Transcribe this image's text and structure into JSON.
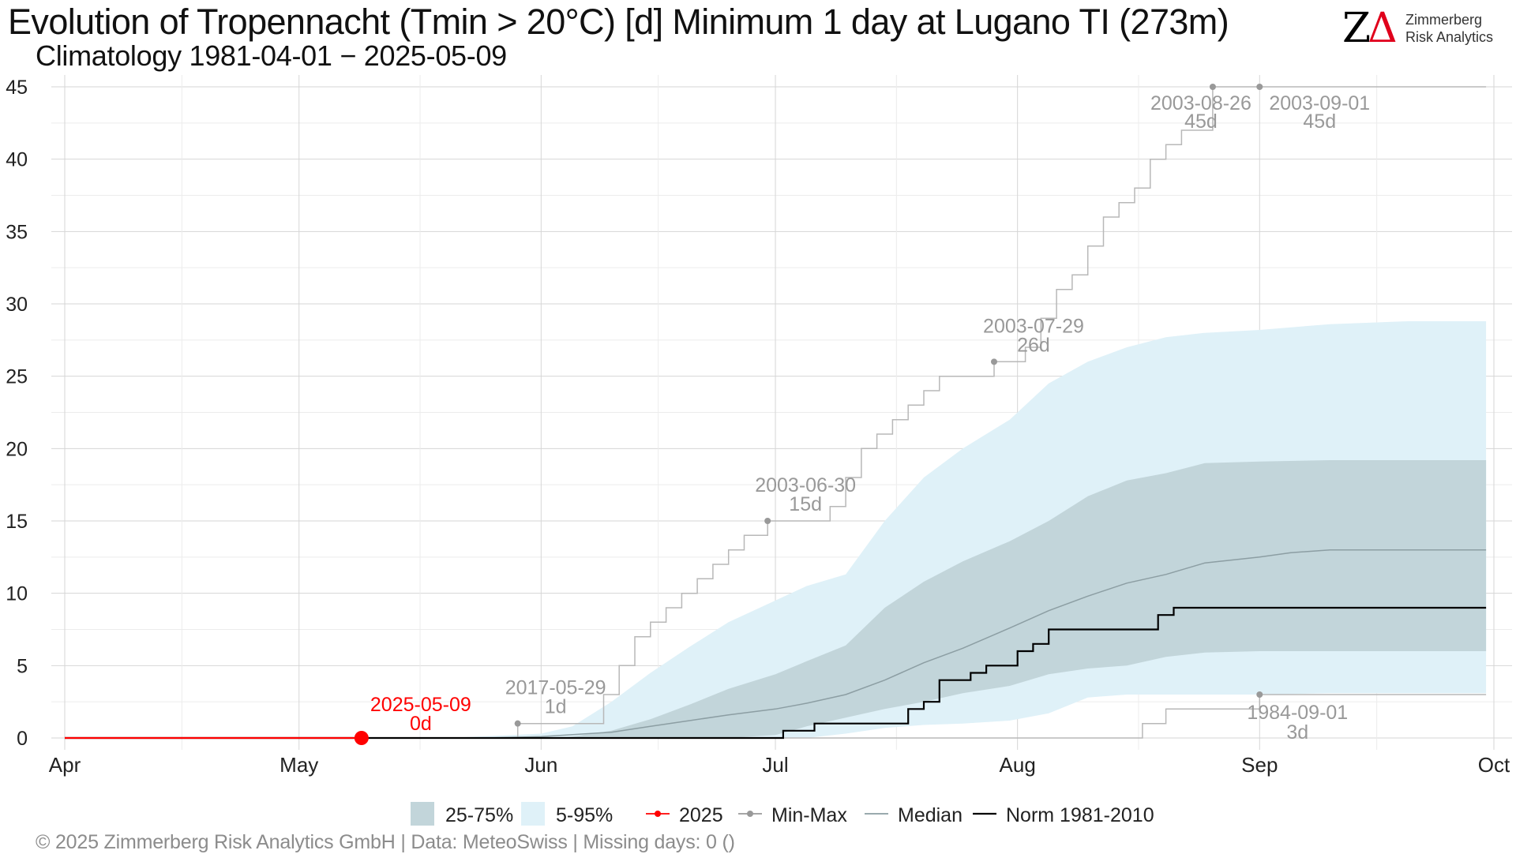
{
  "header": {
    "title": "Evolution of Tropennacht (Tmin > 20°C) [d] Minimum 1 day at Lugano  TI (273m)",
    "subtitle": "Climatology 1981-04-01 − 2025-05-09"
  },
  "logo": {
    "mark": "ZΔ",
    "line1": "Zimmerberg",
    "line2": "Risk Analytics"
  },
  "footer": {
    "text": "©  2025 Zimmerberg Risk Analytics GmbH | Data: MeteoSwiss | Missing days: 0 ()"
  },
  "colors": {
    "iqr_band": "#c2d5da",
    "p5_95_band": "#dff1f8",
    "current_year": "#ff0000",
    "min_max": "#b8b8b8",
    "median": "#8c9ea3",
    "norm": "#000000",
    "annotation": "#999999"
  },
  "chart_data": {
    "type": "area",
    "ylim": [
      -1,
      46
    ],
    "y_ticks": [
      0,
      5,
      10,
      15,
      20,
      25,
      30,
      35,
      40,
      45
    ],
    "x_ticks": [
      {
        "label": "Apr",
        "date": "04-01"
      },
      {
        "label": "May",
        "date": "05-01"
      },
      {
        "label": "Jun",
        "date": "06-01"
      },
      {
        "label": "Jul",
        "date": "07-01"
      },
      {
        "label": "Aug",
        "date": "08-01"
      },
      {
        "label": "Sep",
        "date": "09-01"
      },
      {
        "label": "Oct",
        "date": "10-01"
      }
    ],
    "grid": true,
    "legend": {
      "position": "bottom",
      "entries": [
        {
          "key": "iqr",
          "label": "25-75%"
        },
        {
          "key": "p5_95",
          "label": "5-95%"
        },
        {
          "key": "current",
          "label": "2025"
        },
        {
          "key": "minmax",
          "label": "Min-Max"
        },
        {
          "key": "median",
          "label": "Median"
        },
        {
          "key": "norm",
          "label": "Norm 1981-2010"
        }
      ]
    },
    "series": {
      "p5_95": {
        "x": [
          "04-01",
          "05-20",
          "06-01",
          "06-05",
          "06-10",
          "06-15",
          "06-20",
          "06-25",
          "07-01",
          "07-05",
          "07-10",
          "07-15",
          "07-20",
          "07-25",
          "07-31",
          "08-05",
          "08-10",
          "08-15",
          "08-20",
          "08-25",
          "09-01",
          "09-10",
          "09-20",
          "09-30"
        ],
        "upper": [
          0,
          0,
          0.3,
          0.8,
          2.5,
          4.5,
          6.3,
          8,
          9.5,
          10.5,
          11.3,
          15,
          18,
          20,
          22,
          24.5,
          26,
          27,
          27.7,
          28,
          28.2,
          28.6,
          28.8,
          28.8
        ],
        "lower": [
          0,
          0,
          0,
          0,
          0,
          0,
          0,
          0,
          0,
          0,
          0.3,
          0.7,
          0.9,
          1,
          1.2,
          1.7,
          2.8,
          3,
          3,
          3,
          3,
          3.1,
          3.1,
          3.1
        ]
      },
      "iqr": {
        "x": [
          "04-01",
          "05-20",
          "06-01",
          "06-05",
          "06-10",
          "06-15",
          "06-20",
          "06-25",
          "07-01",
          "07-05",
          "07-10",
          "07-15",
          "07-20",
          "07-25",
          "07-31",
          "08-05",
          "08-10",
          "08-15",
          "08-20",
          "08-25",
          "09-01",
          "09-10",
          "09-20",
          "09-30"
        ],
        "upper": [
          0,
          0,
          0,
          0.1,
          0.5,
          1.3,
          2.3,
          3.4,
          4.4,
          5.3,
          6.4,
          9,
          10.8,
          12.2,
          13.6,
          15,
          16.7,
          17.8,
          18.3,
          19,
          19.1,
          19.2,
          19.2,
          19.2
        ],
        "lower": [
          0,
          0,
          0,
          0,
          0,
          0,
          0,
          0,
          0.2,
          0.8,
          1.4,
          2,
          2.5,
          3.1,
          3.6,
          4.4,
          4.8,
          5,
          5.6,
          5.9,
          6,
          6,
          6,
          6
        ]
      },
      "median": {
        "x": [
          "04-01",
          "05-25",
          "06-01",
          "06-10",
          "06-15",
          "06-20",
          "06-25",
          "07-01",
          "07-05",
          "07-10",
          "07-15",
          "07-20",
          "07-25",
          "07-31",
          "08-05",
          "08-10",
          "08-15",
          "08-20",
          "08-25",
          "09-01",
          "09-05",
          "09-10",
          "09-20",
          "09-30"
        ],
        "y": [
          0,
          0,
          0.1,
          0.4,
          0.8,
          1.2,
          1.6,
          2,
          2.4,
          3,
          4,
          5.2,
          6.2,
          7.6,
          8.8,
          9.8,
          10.7,
          11.3,
          12.1,
          12.5,
          12.8,
          13,
          13,
          13
        ]
      },
      "norm": {
        "x": [
          "04-01",
          "06-28",
          "07-02",
          "07-06",
          "07-18",
          "07-20",
          "07-22",
          "07-26",
          "07-28",
          "08-01",
          "08-03",
          "08-05",
          "08-17",
          "08-19",
          "08-21",
          "09-30"
        ],
        "y": [
          0,
          0,
          0.5,
          1,
          2,
          2.5,
          4,
          4.5,
          5,
          6,
          6.5,
          7.5,
          7.5,
          8.5,
          9,
          9
        ]
      },
      "max_year": {
        "x": [
          "04-01",
          "05-29",
          "06-01",
          "06-06",
          "06-09",
          "06-11",
          "06-13",
          "06-15",
          "06-17",
          "06-19",
          "06-21",
          "06-23",
          "06-25",
          "06-27",
          "06-30",
          "07-01",
          "07-08",
          "07-10",
          "07-12",
          "07-14",
          "07-16",
          "07-18",
          "07-20",
          "07-22",
          "07-24",
          "07-29",
          "07-31",
          "08-02",
          "08-04",
          "08-06",
          "08-08",
          "08-10",
          "08-12",
          "08-14",
          "08-16",
          "08-18",
          "08-20",
          "08-22",
          "08-26",
          "09-01",
          "09-30"
        ],
        "y": [
          0,
          1,
          1,
          1,
          3,
          5,
          7,
          8,
          9,
          10,
          11,
          12,
          13,
          14,
          15,
          15,
          16,
          18,
          20,
          21,
          22,
          23,
          24,
          25,
          25,
          26,
          26,
          27,
          29,
          31,
          32,
          34,
          36,
          37,
          38,
          40,
          41,
          42,
          45,
          45,
          45
        ]
      },
      "min_year": {
        "x": [
          "04-01",
          "08-06",
          "08-17",
          "08-20",
          "09-01",
          "09-30"
        ],
        "y": [
          0,
          0,
          1,
          2,
          3,
          3
        ]
      },
      "current": {
        "x": [
          "04-01",
          "05-09"
        ],
        "y": [
          0,
          0
        ]
      }
    },
    "annotations": [
      {
        "date_label": "2017-05-29",
        "value_label": "1d",
        "x": "05-29",
        "y": 1,
        "color": "#999999"
      },
      {
        "date_label": "2003-06-30",
        "value_label": "15d",
        "x": "06-30",
        "y": 15,
        "color": "#999999"
      },
      {
        "date_label": "2003-07-29",
        "value_label": "26d",
        "x": "07-29",
        "y": 26,
        "color": "#999999"
      },
      {
        "date_label": "2003-08-26",
        "value_label": "45d",
        "x": "08-26",
        "y": 45,
        "color": "#999999"
      },
      {
        "date_label": "2003-09-01",
        "value_label": "45d",
        "x": "09-01",
        "y": 45,
        "color": "#999999"
      },
      {
        "date_label": "1984-09-01",
        "value_label": "3d",
        "x": "09-01",
        "y": 3,
        "color": "#999999"
      },
      {
        "date_label": "2025-05-09",
        "value_label": "0d",
        "x": "05-09",
        "y": 0,
        "color": "#ff0000"
      }
    ]
  }
}
